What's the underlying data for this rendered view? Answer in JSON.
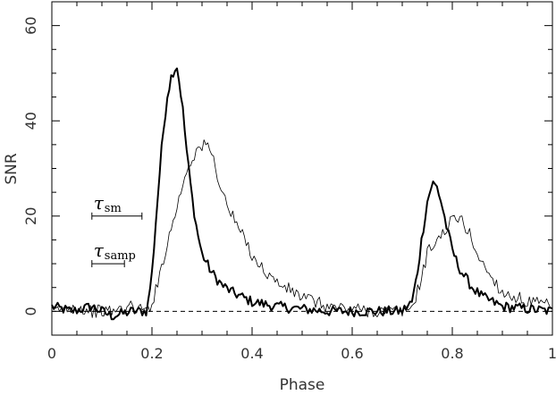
{
  "chart_data": {
    "type": "line",
    "title": "",
    "xlabel": "Phase",
    "ylabel": "SNR",
    "xlim": [
      0,
      1
    ],
    "ylim": [
      -5,
      65
    ],
    "x_ticks": [
      0,
      0.2,
      0.4,
      0.6,
      0.8,
      1
    ],
    "x_tick_labels": [
      "0",
      "0.2",
      "0.4",
      "0.6",
      "0.8",
      "1"
    ],
    "y_ticks": [
      0,
      20,
      40,
      60
    ],
    "y_tick_labels": [
      "0",
      "20",
      "40",
      "60"
    ],
    "grid": false,
    "baseline": {
      "y": 0,
      "style": "dashed"
    },
    "series": [
      {
        "style": "thick",
        "x": [
          0.0,
          0.04,
          0.08,
          0.12,
          0.16,
          0.19,
          0.2,
          0.21,
          0.22,
          0.23,
          0.24,
          0.25,
          0.26,
          0.27,
          0.28,
          0.29,
          0.3,
          0.32,
          0.34,
          0.36,
          0.38,
          0.4,
          0.45,
          0.5,
          0.55,
          0.6,
          0.65,
          0.7,
          0.72,
          0.73,
          0.74,
          0.75,
          0.76,
          0.77,
          0.78,
          0.79,
          0.8,
          0.81,
          0.82,
          0.84,
          0.86,
          0.88,
          0.9,
          0.95,
          1.0
        ],
        "values": [
          1,
          0,
          1,
          -1,
          0,
          0,
          8,
          22,
          35,
          45,
          50,
          51.5,
          44,
          33,
          24,
          17,
          12,
          8,
          5.5,
          4,
          3,
          2,
          1,
          0.5,
          0,
          0,
          0,
          0,
          2,
          8,
          16,
          23,
          27,
          26,
          22,
          17,
          13,
          10,
          8,
          5,
          3,
          2,
          1,
          0.5,
          0
        ]
      },
      {
        "style": "thin",
        "x": [
          0.0,
          0.04,
          0.08,
          0.12,
          0.16,
          0.19,
          0.2,
          0.21,
          0.22,
          0.23,
          0.24,
          0.25,
          0.26,
          0.27,
          0.28,
          0.29,
          0.3,
          0.31,
          0.32,
          0.33,
          0.34,
          0.36,
          0.38,
          0.4,
          0.42,
          0.45,
          0.5,
          0.55,
          0.6,
          0.65,
          0.7,
          0.72,
          0.73,
          0.74,
          0.75,
          0.76,
          0.77,
          0.78,
          0.79,
          0.8,
          0.81,
          0.82,
          0.83,
          0.84,
          0.85,
          0.86,
          0.88,
          0.9,
          0.95,
          1.0
        ],
        "values": [
          0,
          1,
          0,
          0,
          1,
          0,
          2,
          5,
          10,
          14,
          18,
          22,
          26,
          30,
          32,
          34,
          34.5,
          35,
          33,
          29,
          25,
          20,
          16,
          12,
          9,
          6,
          3,
          1,
          0.5,
          0,
          0,
          1,
          4,
          8,
          12,
          14,
          15,
          16,
          18,
          19,
          19.5,
          19,
          17,
          15,
          12,
          10,
          7,
          4,
          2,
          1
        ]
      }
    ],
    "annotations": [
      {
        "label": "τ",
        "subscript": "sm",
        "bar": [
          0.08,
          0.18
        ],
        "y": 20
      },
      {
        "label": "τ",
        "subscript": "samp",
        "bar": [
          0.08,
          0.145
        ],
        "y": 10
      }
    ]
  }
}
